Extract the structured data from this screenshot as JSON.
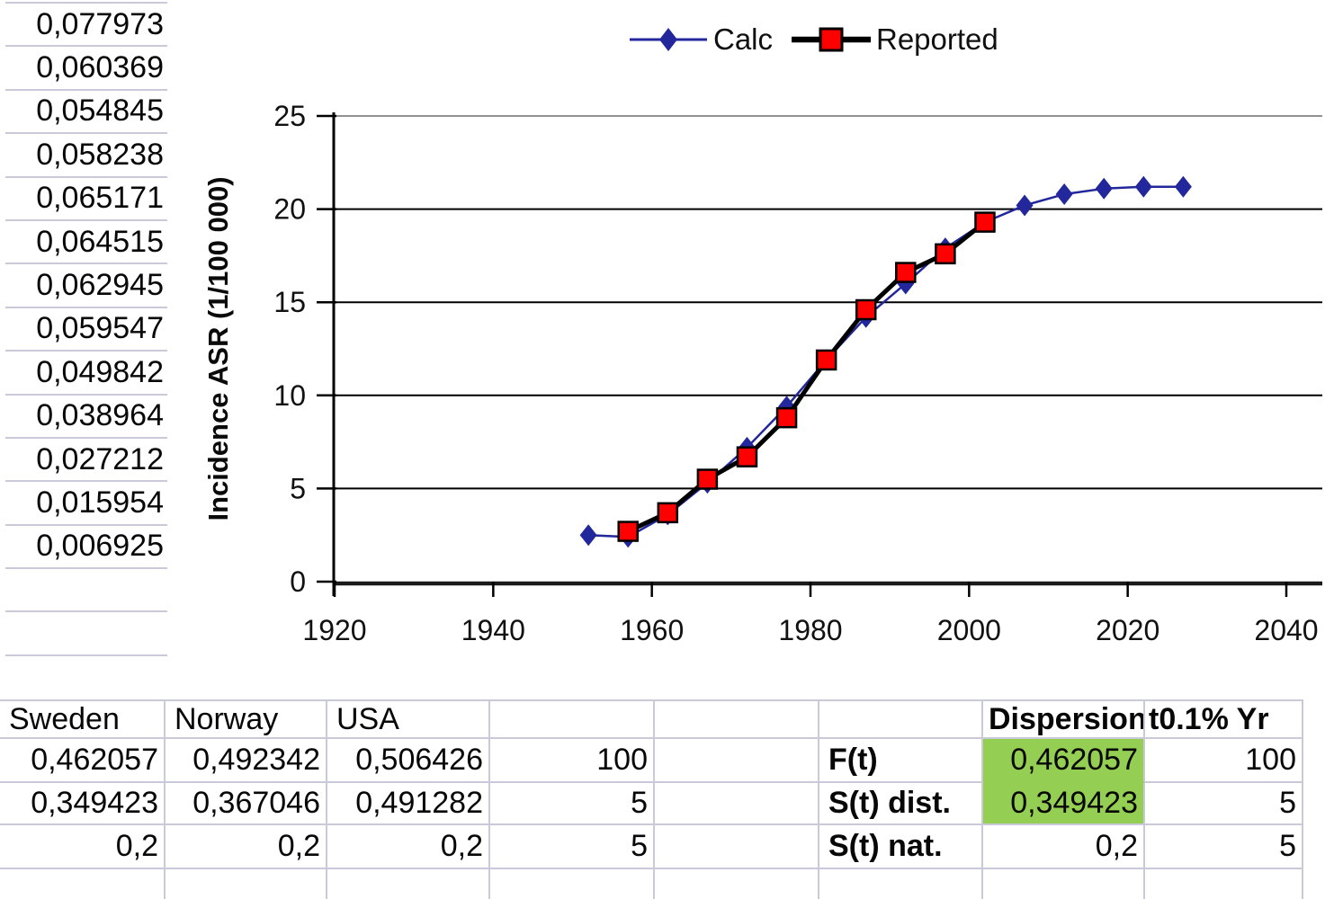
{
  "left_column": {
    "values": [
      "0,077973",
      "0,060369",
      "0,054845",
      "0,058238",
      "0,065171",
      "0,064515",
      "0,062945",
      "0,059547",
      "0,049842",
      "0,038964",
      "0,027212",
      "0,015954",
      "0,006925",
      "",
      ""
    ]
  },
  "chart_data": {
    "type": "line",
    "title": "",
    "y_axis": {
      "title": "Incidence ASR (1/100 000)",
      "min": 0,
      "max": 25,
      "ticks": [
        0,
        5,
        10,
        15,
        20,
        25
      ]
    },
    "x_axis": {
      "min": 1920,
      "max": 2040,
      "ticks": [
        1920,
        1940,
        1960,
        1980,
        2000,
        2020,
        2040
      ]
    },
    "grid": true,
    "legend_position": "top-center",
    "series": [
      {
        "name": "Calc",
        "marker": "diamond",
        "marker_color": "#22279b",
        "line_color": "#22279b",
        "x": [
          1952,
          1957,
          1962,
          1967,
          1972,
          1977,
          1982,
          1987,
          1992,
          1997,
          2002,
          2007,
          2012,
          2017,
          2022,
          2027
        ],
        "y": [
          2.5,
          2.4,
          3.6,
          5.3,
          7.2,
          9.4,
          11.9,
          14.2,
          16.0,
          17.9,
          19.3,
          20.2,
          20.8,
          21.1,
          21.2,
          21.2
        ]
      },
      {
        "name": "Reported",
        "marker": "square",
        "marker_color": "#ff0000",
        "line_color": "#000000",
        "x": [
          1957,
          1962,
          1967,
          1972,
          1977,
          1982,
          1987,
          1992,
          1997,
          2002
        ],
        "y": [
          2.7,
          3.7,
          5.5,
          6.7,
          8.8,
          11.9,
          14.6,
          16.6,
          17.6,
          19.3
        ]
      }
    ]
  },
  "bottom_table": {
    "rows": [
      [
        "Sweden",
        "Norway",
        "USA",
        "",
        "",
        "",
        "Dispersion",
        "t0.1% Yr"
      ],
      [
        "0,462057",
        "0,492342",
        "0,506426",
        "100",
        "",
        "F(t)",
        "0,462057",
        "100"
      ],
      [
        "0,349423",
        "0,367046",
        "0,491282",
        "5",
        "",
        "S(t) dist.",
        "0,349423",
        "5"
      ],
      [
        "0,2",
        "0,2",
        "0,2",
        "5",
        "",
        "S(t) nat.",
        "0,2",
        "5"
      ]
    ],
    "highlight_color": "#94ce53",
    "highlighted_cells": [
      [
        1,
        6
      ],
      [
        2,
        6
      ]
    ]
  },
  "colors": {
    "calc_series": "#22279b",
    "reported_marker": "#ff0000",
    "reported_line": "#000000",
    "grid_border": "#c9c9da",
    "top_gridline": "#919191",
    "highlight_green": "#94ce53"
  }
}
